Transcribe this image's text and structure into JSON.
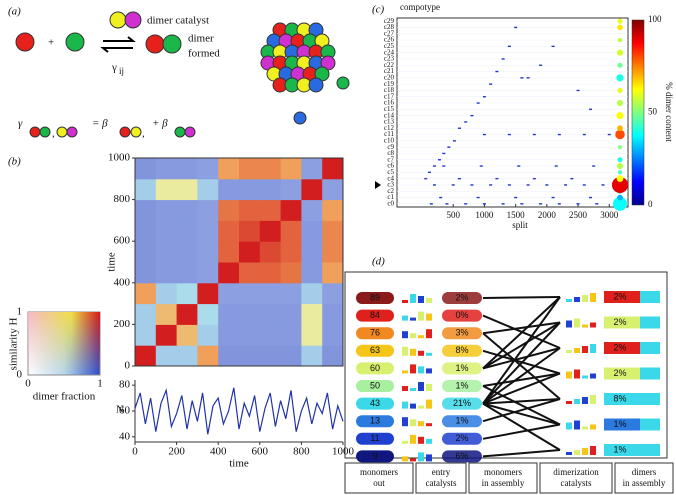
{
  "panel_labels": [
    "(a)",
    "(b)",
    "(c)",
    "(d)"
  ],
  "panel_a": {
    "plus_sign": "+",
    "dimer_catalyst": "dimer catalyst",
    "dimer": "dimer",
    "formed": "formed",
    "rate": "γ",
    "rate_sub": "ij",
    "gamma": "γ",
    "sep": ",",
    "eq": "= β",
    "plus_beta": "+ β"
  },
  "legend_b": {
    "y_label": "similarity H",
    "x_label": "dimer fraction",
    "yticks": [
      0,
      1
    ],
    "xticks": [
      0,
      1
    ]
  },
  "chart_data": [
    {
      "type": "heatmap",
      "ylabel": "time",
      "xlim": [
        0,
        1000
      ],
      "ylim": [
        0,
        1000
      ],
      "yticks": [
        0,
        200,
        400,
        600,
        800,
        1000
      ],
      "values": [
        [
          1.0,
          0.45,
          0.45,
          0.85,
          0.2,
          0.2,
          0.2,
          0.2,
          0.45,
          0.2
        ],
        [
          0.45,
          1.0,
          0.8,
          0.45,
          0.25,
          0.25,
          0.25,
          0.25,
          0.7,
          0.25
        ],
        [
          0.45,
          0.8,
          1.0,
          0.5,
          0.25,
          0.25,
          0.25,
          0.25,
          0.7,
          0.25
        ],
        [
          0.85,
          0.45,
          0.5,
          1.0,
          0.3,
          0.3,
          0.3,
          0.3,
          0.45,
          0.3
        ],
        [
          0.2,
          0.25,
          0.25,
          0.3,
          1.0,
          0.92,
          0.92,
          0.9,
          0.25,
          0.85
        ],
        [
          0.2,
          0.25,
          0.25,
          0.3,
          0.92,
          1.0,
          0.95,
          0.92,
          0.25,
          0.88
        ],
        [
          0.2,
          0.25,
          0.25,
          0.3,
          0.92,
          0.95,
          1.0,
          0.92,
          0.25,
          0.88
        ],
        [
          0.2,
          0.25,
          0.25,
          0.3,
          0.9,
          0.92,
          0.92,
          1.0,
          0.3,
          0.85
        ],
        [
          0.45,
          0.7,
          0.7,
          0.45,
          0.25,
          0.25,
          0.25,
          0.3,
          1.0,
          0.3
        ],
        [
          0.2,
          0.25,
          0.25,
          0.3,
          0.85,
          0.88,
          0.88,
          0.85,
          0.3,
          1.0
        ]
      ]
    },
    {
      "type": "line",
      "ylabel": "N",
      "xlabel": "time",
      "xlim": [
        0,
        1000
      ],
      "ylim": [
        36,
        84
      ],
      "xticks": [
        0,
        200,
        400,
        600,
        800,
        1000
      ],
      "yticks": [
        40,
        60,
        80
      ],
      "color": "#2233aa",
      "x": [
        0,
        25,
        50,
        75,
        100,
        125,
        150,
        175,
        200,
        225,
        250,
        275,
        300,
        325,
        350,
        375,
        400,
        425,
        450,
        475,
        500,
        525,
        550,
        575,
        600,
        625,
        650,
        675,
        700,
        725,
        750,
        775,
        800,
        825,
        850,
        875,
        900,
        925,
        950,
        975,
        1000
      ],
      "values": [
        62,
        74,
        50,
        70,
        44,
        66,
        76,
        48,
        58,
        72,
        46,
        68,
        52,
        74,
        42,
        64,
        70,
        50,
        60,
        78,
        46,
        66,
        56,
        72,
        44,
        62,
        74,
        48,
        68,
        54,
        76,
        44,
        60,
        70,
        50,
        66,
        58,
        74,
        46,
        64,
        52
      ]
    },
    {
      "type": "scatter",
      "ytitle": "compotype",
      "xlabel": "split",
      "xlim": [
        -400,
        3300
      ],
      "xticks": [
        500,
        1000,
        1500,
        2000,
        2500,
        3000
      ],
      "ylim": [
        -0.5,
        29.5
      ],
      "color": "#2233cc",
      "ycategories": [
        "c0",
        "c1",
        "c2",
        "c3",
        "c4",
        "c5",
        "c6",
        "c7",
        "c8",
        "c9",
        "c10",
        "c11",
        "c12",
        "c13",
        "c14",
        "c15",
        "c16",
        "c17",
        "c18",
        "c19",
        "c20",
        "c21",
        "c22",
        "c23",
        "c24",
        "c25",
        "c26",
        "c27",
        "c28",
        "c29"
      ],
      "x": [
        150,
        400,
        700,
        1000,
        1300,
        1600,
        1900,
        2200,
        2500,
        2800,
        3100,
        300,
        900,
        1500,
        2100,
        2700,
        200,
        500,
        800,
        1100,
        1400,
        1700,
        2000,
        2300,
        2600,
        2900,
        3200,
        600,
        1200,
        1800,
        2400,
        350,
        950,
        1550,
        2150,
        2750,
        1000,
        1400,
        1800,
        2200,
        2600,
        3000,
        60,
        120,
        200,
        280,
        350,
        430,
        520,
        600,
        700,
        800,
        900,
        1000,
        1100,
        1200,
        1300,
        1400,
        1500,
        1600,
        1700,
        2700,
        2100,
        2500,
        1900
      ],
      "y": [
        0,
        0,
        0,
        0,
        0,
        0,
        0,
        0,
        0,
        0,
        0,
        1,
        1,
        1,
        1,
        1,
        3,
        3,
        3,
        3,
        3,
        3,
        3,
        3,
        3,
        3,
        3,
        4,
        4,
        4,
        4,
        6,
        6,
        6,
        6,
        6,
        11,
        11,
        11,
        11,
        11,
        11,
        4,
        5,
        6,
        7,
        8,
        9,
        10,
        12,
        13,
        14,
        16,
        17,
        19,
        21,
        23,
        25,
        28,
        20,
        20,
        15,
        25,
        18,
        22
      ],
      "bubbles": {
        "y": [
          0,
          1,
          2,
          3,
          4,
          5,
          6,
          7,
          9,
          11,
          12,
          14,
          16,
          18,
          20,
          22,
          24,
          26,
          28,
          29
        ],
        "sizes": [
          60,
          10,
          8,
          80,
          14,
          6,
          12,
          8,
          5,
          28,
          10,
          16,
          12,
          8,
          16,
          8,
          12,
          6,
          10,
          8
        ],
        "values": [
          38,
          30,
          35,
          90,
          62,
          45,
          55,
          40,
          50,
          80,
          70,
          62,
          55,
          60,
          40,
          48,
          58,
          55,
          65,
          60
        ]
      },
      "colorbar": {
        "lim": [
          0,
          100
        ],
        "ticks": [
          0,
          50,
          100
        ],
        "label": "% dimer content"
      }
    }
  ],
  "panel_d": {
    "columns": [
      "monomers out",
      "entry catalysts",
      "monomers in assembly",
      "dimerization catalysts",
      "dimers in assembly"
    ],
    "left_rows": {
      "n": [
        89,
        84,
        76,
        63,
        60,
        50,
        43,
        13,
        11,
        9
      ],
      "pct": [
        "2%",
        "0%",
        "3%",
        "8%",
        "1%",
        "1%",
        "21%",
        "1%",
        "2%",
        "6%"
      ],
      "colors": [
        "#8b1a1a",
        "#e0201c",
        "#f08a20",
        "#f5c518",
        "#d8f070",
        "#a8f0a0",
        "#3ad8e8",
        "#2a7ae0",
        "#2040d0",
        "#101880"
      ]
    },
    "right_rows": {
      "pct": [
        "2%",
        "2%",
        "2%",
        "2%",
        "8%",
        "1%",
        "1%"
      ],
      "colors": [
        "#e0201c",
        "#d8f070",
        "#e0201c",
        "#d8f070",
        "#3ad8e8",
        "#2a7ae0",
        "#3ad8e8"
      ]
    }
  }
}
